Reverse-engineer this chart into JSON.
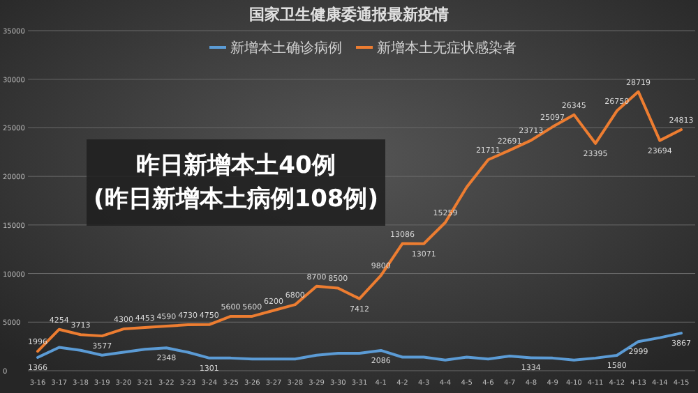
{
  "chart_data": {
    "type": "line",
    "title": "国家卫生健康委通报最新疫情",
    "categories": [
      "3-16",
      "3-17",
      "3-18",
      "3-19",
      "3-20",
      "3-21",
      "3-22",
      "3-23",
      "3-24",
      "3-25",
      "3-26",
      "3-27",
      "3-28",
      "3-29",
      "3-30",
      "3-31",
      "4-1",
      "4-2",
      "4-3",
      "4-4",
      "4-5",
      "4-6",
      "4-7",
      "4-8",
      "4-9",
      "4-10",
      "4-11",
      "4-12",
      "4-13",
      "4-14",
      "4-15"
    ],
    "series": [
      {
        "name": "新增本土确诊病例",
        "color": "#5b9bd5",
        "values": [
          1366,
          2400,
          2100,
          1600,
          1900,
          2200,
          2348,
          1900,
          1301,
          1300,
          1200,
          1200,
          1200,
          1600,
          1800,
          1800,
          2086,
          1400,
          1400,
          1100,
          1400,
          1200,
          1500,
          1334,
          1300,
          1100,
          1300,
          1580,
          2999,
          3400,
          3867
        ],
        "value_labels": [
          "1366",
          null,
          null,
          null,
          null,
          null,
          "2348",
          null,
          "1301",
          null,
          null,
          null,
          null,
          null,
          null,
          null,
          "2086",
          null,
          null,
          null,
          null,
          null,
          null,
          "1334",
          null,
          null,
          null,
          "1580",
          "2999",
          null,
          "3867"
        ]
      },
      {
        "name": "新增本土无症状感染者",
        "color": "#ed7d31",
        "values": [
          1996,
          4254,
          3713,
          3577,
          4300,
          4453,
          4590,
          4730,
          4750,
          5600,
          5600,
          6200,
          6800,
          8700,
          8500,
          7412,
          9800,
          13086,
          13071,
          15259,
          18900,
          21711,
          22691,
          23713,
          25097,
          26345,
          23395,
          26750,
          28719,
          23694,
          24813
        ],
        "value_labels": [
          "1996",
          "4254",
          "3713",
          "3577",
          "4300",
          "4453",
          "4590",
          "4730",
          "4750",
          "5600",
          "5600",
          "6200",
          "6800",
          "8700",
          "8500",
          "7412",
          "9800",
          "13086",
          "13071",
          "15259",
          null,
          "21711",
          "22691",
          "23713",
          "25097",
          "26345",
          "23395",
          "26750",
          "28719",
          "23694",
          "24813"
        ]
      }
    ],
    "ylim": [
      0,
      35000
    ],
    "yticks": [
      0,
      5000,
      10000,
      15000,
      20000,
      25000,
      30000,
      35000
    ],
    "grid": "y",
    "legend": "top",
    "marker": "none",
    "line_style": "solid",
    "annotations": [
      "昨日新增本土40例(昨日新增本土病例108例)"
    ]
  }
}
